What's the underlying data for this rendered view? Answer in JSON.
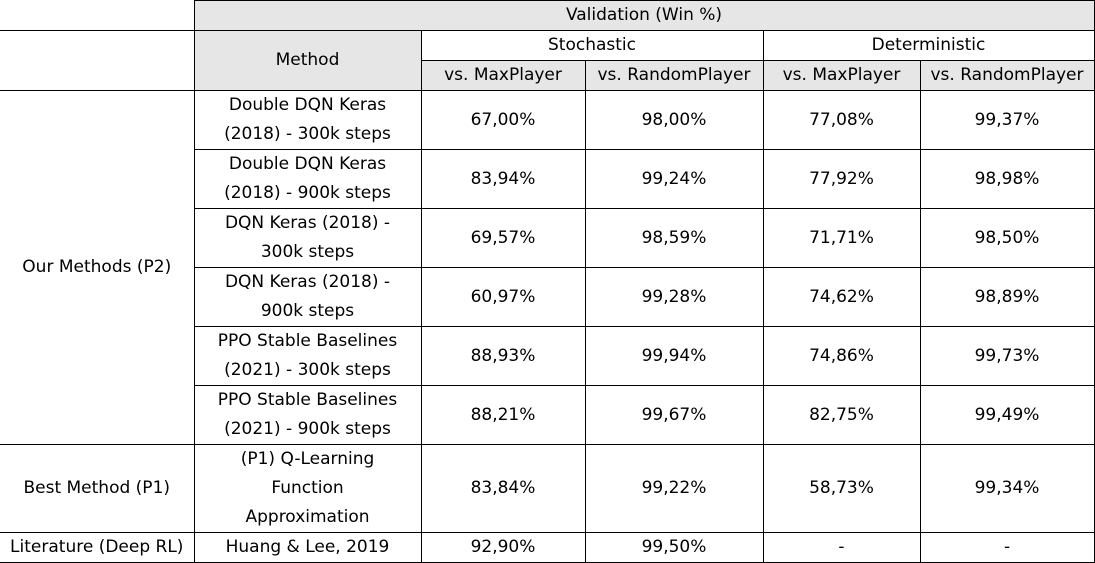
{
  "header": {
    "validation": "Validation (Win %)",
    "method": "Method",
    "stochastic": "Stochastic",
    "deterministic": "Deterministic",
    "vs_max": "vs. MaxPlayer",
    "vs_random": "vs. RandomPlayer"
  },
  "groups": {
    "ours": "Our Methods (P2)",
    "best": "Best Method (P1)",
    "literature": "Literature (Deep RL)"
  },
  "rows": [
    {
      "method_lines": [
        "Double DQN Keras",
        "(2018) - 300k steps"
      ],
      "sto_max": "67,00%",
      "sto_rand": "98,00%",
      "det_max": "77,08%",
      "det_rand": "99,37%"
    },
    {
      "method_lines": [
        "Double DQN Keras",
        "(2018) - 900k steps"
      ],
      "sto_max": "83,94%",
      "sto_rand": "99,24%",
      "det_max": "77,92%",
      "det_rand": "98,98%"
    },
    {
      "method_lines": [
        "DQN Keras (2018) -",
        "300k steps"
      ],
      "sto_max": "69,57%",
      "sto_rand": "98,59%",
      "det_max": "71,71%",
      "det_rand": "98,50%"
    },
    {
      "method_lines": [
        "DQN Keras (2018) -",
        "900k steps"
      ],
      "sto_max": "60,97%",
      "sto_rand": "99,28%",
      "det_max": "74,62%",
      "det_rand": "98,89%"
    },
    {
      "method_lines": [
        "PPO Stable Baselines",
        "(2021) - 300k steps"
      ],
      "sto_max": "88,93%",
      "sto_rand": "99,94%",
      "det_max": "74,86%",
      "det_rand": "99,73%"
    },
    {
      "method_lines": [
        "PPO Stable Baselines",
        "(2021) - 900k steps"
      ],
      "sto_max": "88,21%",
      "sto_rand": "99,67%",
      "det_max": "82,75%",
      "det_rand": "99,49%"
    },
    {
      "method_lines": [
        "(P1) Q-Learning",
        "Function",
        "Approximation"
      ],
      "sto_max": "83,84%",
      "sto_rand": "99,22%",
      "det_max": "58,73%",
      "det_rand": "99,34%"
    },
    {
      "method_lines": [
        "Huang & Lee, 2019"
      ],
      "sto_max": "92,90%",
      "sto_rand": "99,50%",
      "det_max": "-",
      "det_rand": "-"
    }
  ]
}
